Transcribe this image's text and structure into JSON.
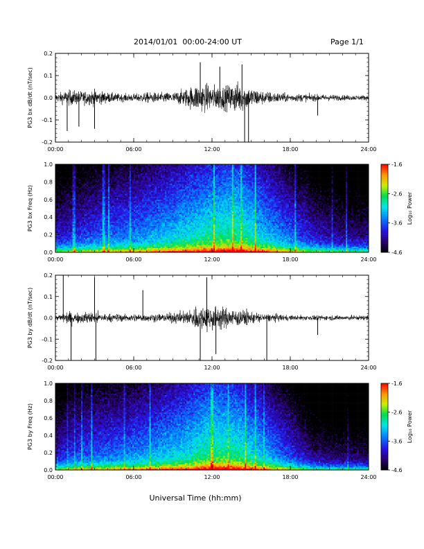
{
  "header": {
    "title": "2014/01/01  00:00-24:00 UT",
    "page_label": "Page 1/1"
  },
  "xaxis": {
    "label": "Universal Time (hh:mm)"
  },
  "colors": {
    "axis": "#000000",
    "trace": "#000000"
  },
  "colorbar": {
    "label": "Log₁₀ Power",
    "ticks": [
      "-1.6",
      "-2.6",
      "-3.6",
      "-4.6"
    ],
    "range": [
      -4.6,
      -1.6
    ]
  },
  "chart_data": [
    {
      "type": "line",
      "ylabel": "PG3 bx dB/dt (nT/sec)",
      "xlim": [
        0,
        24
      ],
      "ylim": [
        -0.2,
        0.2
      ],
      "x_ticks": [
        "00:00",
        "06:00",
        "12:00",
        "18:00",
        "24:00"
      ],
      "y_ticks": [
        "0.2",
        "0.1",
        "0.0",
        "-0.1",
        "-0.2"
      ],
      "envelope": [
        {
          "t": 0,
          "a": 0.03
        },
        {
          "t": 1,
          "a": 0.06
        },
        {
          "t": 2,
          "a": 0.05
        },
        {
          "t": 3,
          "a": 0.06
        },
        {
          "t": 4,
          "a": 0.04
        },
        {
          "t": 5,
          "a": 0.03
        },
        {
          "t": 6,
          "a": 0.03
        },
        {
          "t": 7,
          "a": 0.04
        },
        {
          "t": 8,
          "a": 0.04
        },
        {
          "t": 9,
          "a": 0.04
        },
        {
          "t": 10,
          "a": 0.07
        },
        {
          "t": 11,
          "a": 0.11
        },
        {
          "t": 12,
          "a": 0.1
        },
        {
          "t": 13,
          "a": 0.09
        },
        {
          "t": 14,
          "a": 0.12
        },
        {
          "t": 15,
          "a": 0.08
        },
        {
          "t": 16,
          "a": 0.05
        },
        {
          "t": 17,
          "a": 0.04
        },
        {
          "t": 18,
          "a": 0.03
        },
        {
          "t": 19,
          "a": 0.03
        },
        {
          "t": 20,
          "a": 0.025
        },
        {
          "t": 21,
          "a": 0.025
        },
        {
          "t": 22,
          "a": 0.02
        },
        {
          "t": 23,
          "a": 0.02
        },
        {
          "t": 24,
          "a": 0.02
        }
      ],
      "spikes": [
        {
          "t": 0.9,
          "v": -0.15
        },
        {
          "t": 1.8,
          "v": -0.13
        },
        {
          "t": 3.0,
          "v": -0.14
        },
        {
          "t": 11.1,
          "v": 0.16
        },
        {
          "t": 12.6,
          "v": 0.14
        },
        {
          "t": 14.3,
          "v": 0.15
        },
        {
          "t": 14.5,
          "v": -0.2
        },
        {
          "t": 14.8,
          "v": -0.2
        },
        {
          "t": 20.1,
          "v": -0.08
        }
      ]
    },
    {
      "type": "heatmap",
      "ylabel": "PG3 bx Freq (Hz)",
      "xlim": [
        0,
        24
      ],
      "ylim": [
        0,
        1.0
      ],
      "x_ticks": [
        "00:00",
        "06:00",
        "12:00",
        "18:00",
        "24:00"
      ],
      "y_ticks": [
        "1.0",
        "0.8",
        "0.6",
        "0.4",
        "0.2",
        "0.0"
      ],
      "activity": [
        {
          "t": 0,
          "p": -4.0
        },
        {
          "t": 2,
          "p": -3.8
        },
        {
          "t": 4,
          "p": -3.6
        },
        {
          "t": 6,
          "p": -3.5
        },
        {
          "t": 8,
          "p": -3.3
        },
        {
          "t": 10,
          "p": -3.1
        },
        {
          "t": 12,
          "p": -2.9
        },
        {
          "t": 14,
          "p": -2.8
        },
        {
          "t": 16,
          "p": -3.2
        },
        {
          "t": 18,
          "p": -3.6
        },
        {
          "t": 20,
          "p": -4.0
        },
        {
          "t": 22,
          "p": -4.2
        },
        {
          "t": 24,
          "p": -4.2
        }
      ]
    },
    {
      "type": "line",
      "ylabel": "PG3 by dB/dt (nT/sec)",
      "xlim": [
        0,
        24
      ],
      "ylim": [
        -0.2,
        0.2
      ],
      "x_ticks": [
        "00:00",
        "06:00",
        "12:00",
        "18:00",
        "24:00"
      ],
      "y_ticks": [
        "0.2",
        "0.1",
        "0.0",
        "-0.1",
        "-0.2"
      ],
      "envelope": [
        {
          "t": 0,
          "a": 0.02
        },
        {
          "t": 1,
          "a": 0.05
        },
        {
          "t": 2,
          "a": 0.04
        },
        {
          "t": 3,
          "a": 0.05
        },
        {
          "t": 4,
          "a": 0.03
        },
        {
          "t": 5,
          "a": 0.03
        },
        {
          "t": 6,
          "a": 0.03
        },
        {
          "t": 7,
          "a": 0.03
        },
        {
          "t": 8,
          "a": 0.03
        },
        {
          "t": 9,
          "a": 0.04
        },
        {
          "t": 10,
          "a": 0.05
        },
        {
          "t": 11,
          "a": 0.1
        },
        {
          "t": 12,
          "a": 0.1
        },
        {
          "t": 13,
          "a": 0.08
        },
        {
          "t": 14,
          "a": 0.07
        },
        {
          "t": 15,
          "a": 0.05
        },
        {
          "t": 16,
          "a": 0.03
        },
        {
          "t": 17,
          "a": 0.03
        },
        {
          "t": 18,
          "a": 0.02
        },
        {
          "t": 19,
          "a": 0.02
        },
        {
          "t": 20,
          "a": 0.02
        },
        {
          "t": 21,
          "a": 0.02
        },
        {
          "t": 22,
          "a": 0.02
        },
        {
          "t": 23,
          "a": 0.02
        },
        {
          "t": 24,
          "a": 0.02
        }
      ],
      "spikes": [
        {
          "t": 0.6,
          "v": 0.2
        },
        {
          "t": 1.2,
          "v": -0.2
        },
        {
          "t": 3.0,
          "v": 0.19
        },
        {
          "t": 3.1,
          "v": -0.2
        },
        {
          "t": 6.7,
          "v": 0.13
        },
        {
          "t": 11.1,
          "v": -0.2
        },
        {
          "t": 11.6,
          "v": 0.19
        },
        {
          "t": 12.3,
          "v": -0.17
        },
        {
          "t": 16.2,
          "v": -0.2
        },
        {
          "t": 20.1,
          "v": -0.08
        }
      ]
    },
    {
      "type": "heatmap",
      "ylabel": "PG3 by Freq (Hz)",
      "xlim": [
        0,
        24
      ],
      "ylim": [
        0,
        1.0
      ],
      "x_ticks": [
        "00:00",
        "06:00",
        "12:00",
        "18:00",
        "24:00"
      ],
      "y_ticks": [
        "1.0",
        "0.8",
        "0.6",
        "0.4",
        "0.2",
        "0.0"
      ],
      "activity": [
        {
          "t": 0,
          "p": -4.0
        },
        {
          "t": 2,
          "p": -3.7
        },
        {
          "t": 4,
          "p": -3.6
        },
        {
          "t": 6,
          "p": -3.5
        },
        {
          "t": 8,
          "p": -3.3
        },
        {
          "t": 10,
          "p": -3.1
        },
        {
          "t": 12,
          "p": -2.8
        },
        {
          "t": 14,
          "p": -2.9
        },
        {
          "t": 16,
          "p": -3.3
        },
        {
          "t": 18,
          "p": -3.8
        },
        {
          "t": 20,
          "p": -4.3
        },
        {
          "t": 22,
          "p": -4.4
        },
        {
          "t": 24,
          "p": -4.4
        }
      ]
    }
  ]
}
